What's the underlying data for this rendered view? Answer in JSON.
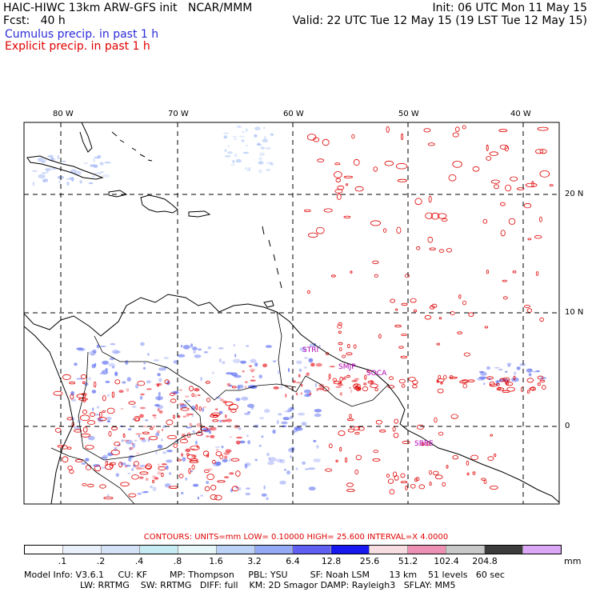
{
  "header": {
    "title": "HAIC-HIWC 13km ARW-GFS init   NCAR/MMM",
    "init": "Init: 06 UTC Mon 11 May 15",
    "fcst": "Fcst:   40 h",
    "valid": "Valid: 22 UTC Tue 12 May 15 (19 LST Tue 12 May 15)",
    "cumulus": "Cumulus precip. in past 1 h",
    "explicit": "Explicit precip. in past 1 h"
  },
  "map": {
    "lon_labels": [
      "80 W",
      "70 W",
      "60 W",
      "50 W",
      "40 W"
    ],
    "lat_labels": [
      "20 N",
      "10 N",
      "0"
    ],
    "place_labels": [
      "STRI",
      "SMJP",
      "SOCA",
      "SBBE"
    ],
    "colors": {
      "cumulus": "#5a6cf0",
      "explicit": "#e00000",
      "grid": "#000000"
    }
  },
  "contours": {
    "label": "CONTOURS:  UNITS=mm  LOW= 0.10000      HIGH=  25.600      INTERVAL=X  4.0000"
  },
  "legend": {
    "ticks": [
      ".1",
      ".2",
      ".4",
      ".8",
      "1.6",
      "3.2",
      "6.4",
      "12.8",
      "25.6",
      "51.2",
      "102.4",
      "204.8"
    ],
    "units": "mm",
    "colors": [
      "#ffffff",
      "#e9f0fb",
      "#d4e2f7",
      "#c6ecf3",
      "#e6f7f8",
      "#bcd2f6",
      "#95aaf5",
      "#5f5ff2",
      "#1717f0",
      "#f7dde2",
      "#ee90b4",
      "#c8c8c8",
      "#3c3c3c",
      "#dba6f5"
    ]
  },
  "model_info": {
    "line1": "Model Info: V3.6.1     CU: KF        MP: Thompson     PBL: YSU        SF: Noah LSM       13 km    51 levels   60 sec",
    "line2": "LW: RRTMG    SW: RRTMG   DIFF: full    KM: 2D Smagor DAMP: Rayleigh3   SFLAY: MM5"
  }
}
